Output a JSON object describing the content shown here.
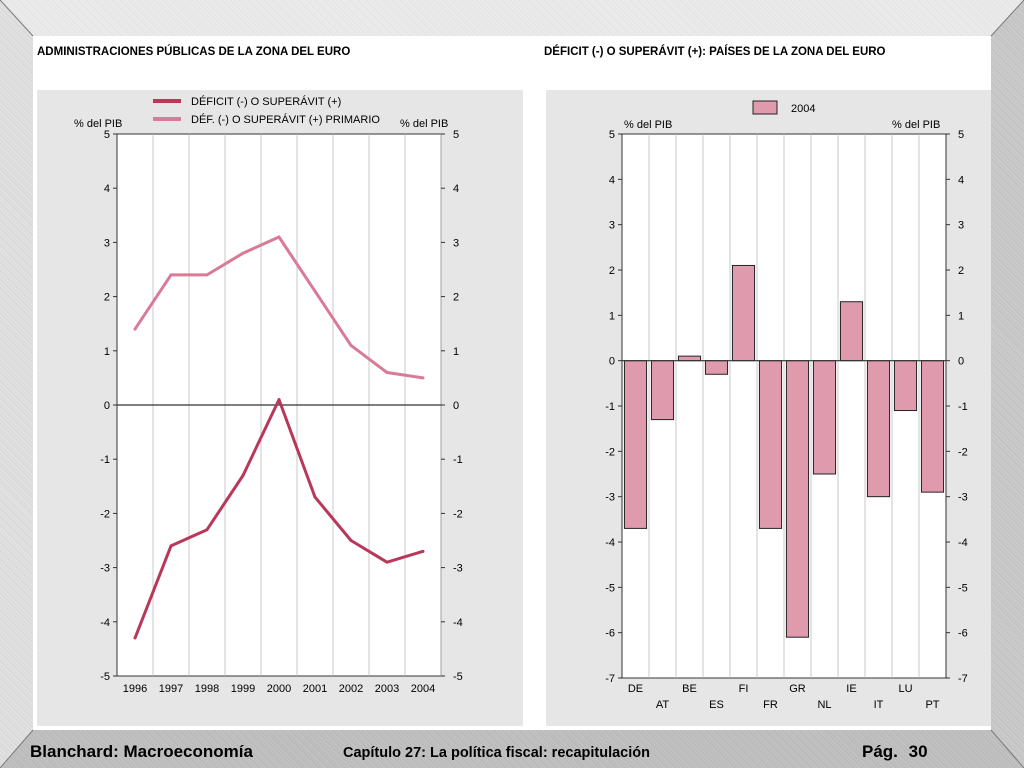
{
  "footer": {
    "left": "Blanchard: Macroeconomía",
    "center": "Capítulo 27: La política fiscal: recapitulación",
    "page_label": "Pág.",
    "page_number": "30"
  },
  "colors": {
    "deficit_line": "#b8385a",
    "primary_line": "#d97a96",
    "bar_fill": "#e09aae",
    "panel_bg": "#e6e6e6"
  },
  "chart_data": [
    {
      "type": "line",
      "title": "ADMINISTRACIONES PÚBLICAS DE LA ZONA DEL EURO",
      "ylabel_left": "% del PIB",
      "ylabel_right": "% del PIB",
      "ylim": [
        -5,
        5
      ],
      "yticks": [
        5,
        4,
        3,
        2,
        1,
        0,
        -1,
        -2,
        -3,
        -4,
        -5
      ],
      "x": [
        "1996",
        "1997",
        "1998",
        "1999",
        "2000",
        "2001",
        "2002",
        "2003",
        "2004"
      ],
      "legend": "top",
      "series": [
        {
          "name": "DÉFICIT (-) O SUPERÁVIT (+)",
          "color": "#b8385a",
          "values": [
            -4.3,
            -2.6,
            -2.3,
            -1.3,
            0.1,
            -1.7,
            -2.5,
            -2.9,
            -2.7
          ]
        },
        {
          "name": "DÉF. (-) O SUPERÁVIT (+) PRIMARIO",
          "color": "#d97a96",
          "values": [
            1.4,
            2.4,
            2.4,
            2.8,
            3.1,
            2.1,
            1.1,
            0.6,
            0.5
          ]
        }
      ]
    },
    {
      "type": "bar",
      "title": "DÉFICIT (-) O SUPERÁVIT (+): PAÍSES DE LA ZONA DEL EURO",
      "ylabel_left": "% del PIB",
      "ylabel_right": "% del PIB",
      "ylim": [
        -7,
        5
      ],
      "yticks": [
        5,
        4,
        3,
        2,
        1,
        0,
        -1,
        -2,
        -3,
        -4,
        -5,
        -6,
        -7
      ],
      "legend": "top",
      "categories": [
        "DE",
        "AT",
        "BE",
        "ES",
        "FI",
        "FR",
        "GR",
        "NL",
        "IE",
        "IT",
        "LU",
        "PT"
      ],
      "series": [
        {
          "name": "2004",
          "color": "#e09aae",
          "values": [
            -3.7,
            -1.3,
            0.1,
            -0.3,
            2.1,
            -3.7,
            -6.1,
            -2.5,
            1.3,
            -3.0,
            -1.1,
            -2.9
          ]
        }
      ]
    }
  ]
}
